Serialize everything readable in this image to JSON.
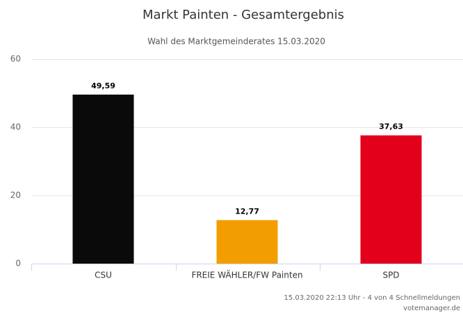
{
  "chart_data": {
    "type": "bar",
    "title": "Markt Painten - Gesamtergebnis",
    "subtitle": "Wahl des Marktgemeinderates 15.03.2020",
    "categories": [
      "CSU",
      "FREIE WÄHLER/FW Painten",
      "SPD"
    ],
    "values": [
      49.59,
      12.77,
      37.63
    ],
    "value_labels": [
      "49,59",
      "12,77",
      "37,63"
    ],
    "colors": [
      "#0a0a0a",
      "#f29e00",
      "#e2001a"
    ],
    "ylim": [
      0,
      60
    ],
    "yticks": [
      0,
      20,
      40,
      60
    ],
    "grid": true,
    "credits": [
      "15.03.2020 22:13 Uhr - 4 von 4 Schnellmeldungen",
      "votemanager.de"
    ]
  }
}
